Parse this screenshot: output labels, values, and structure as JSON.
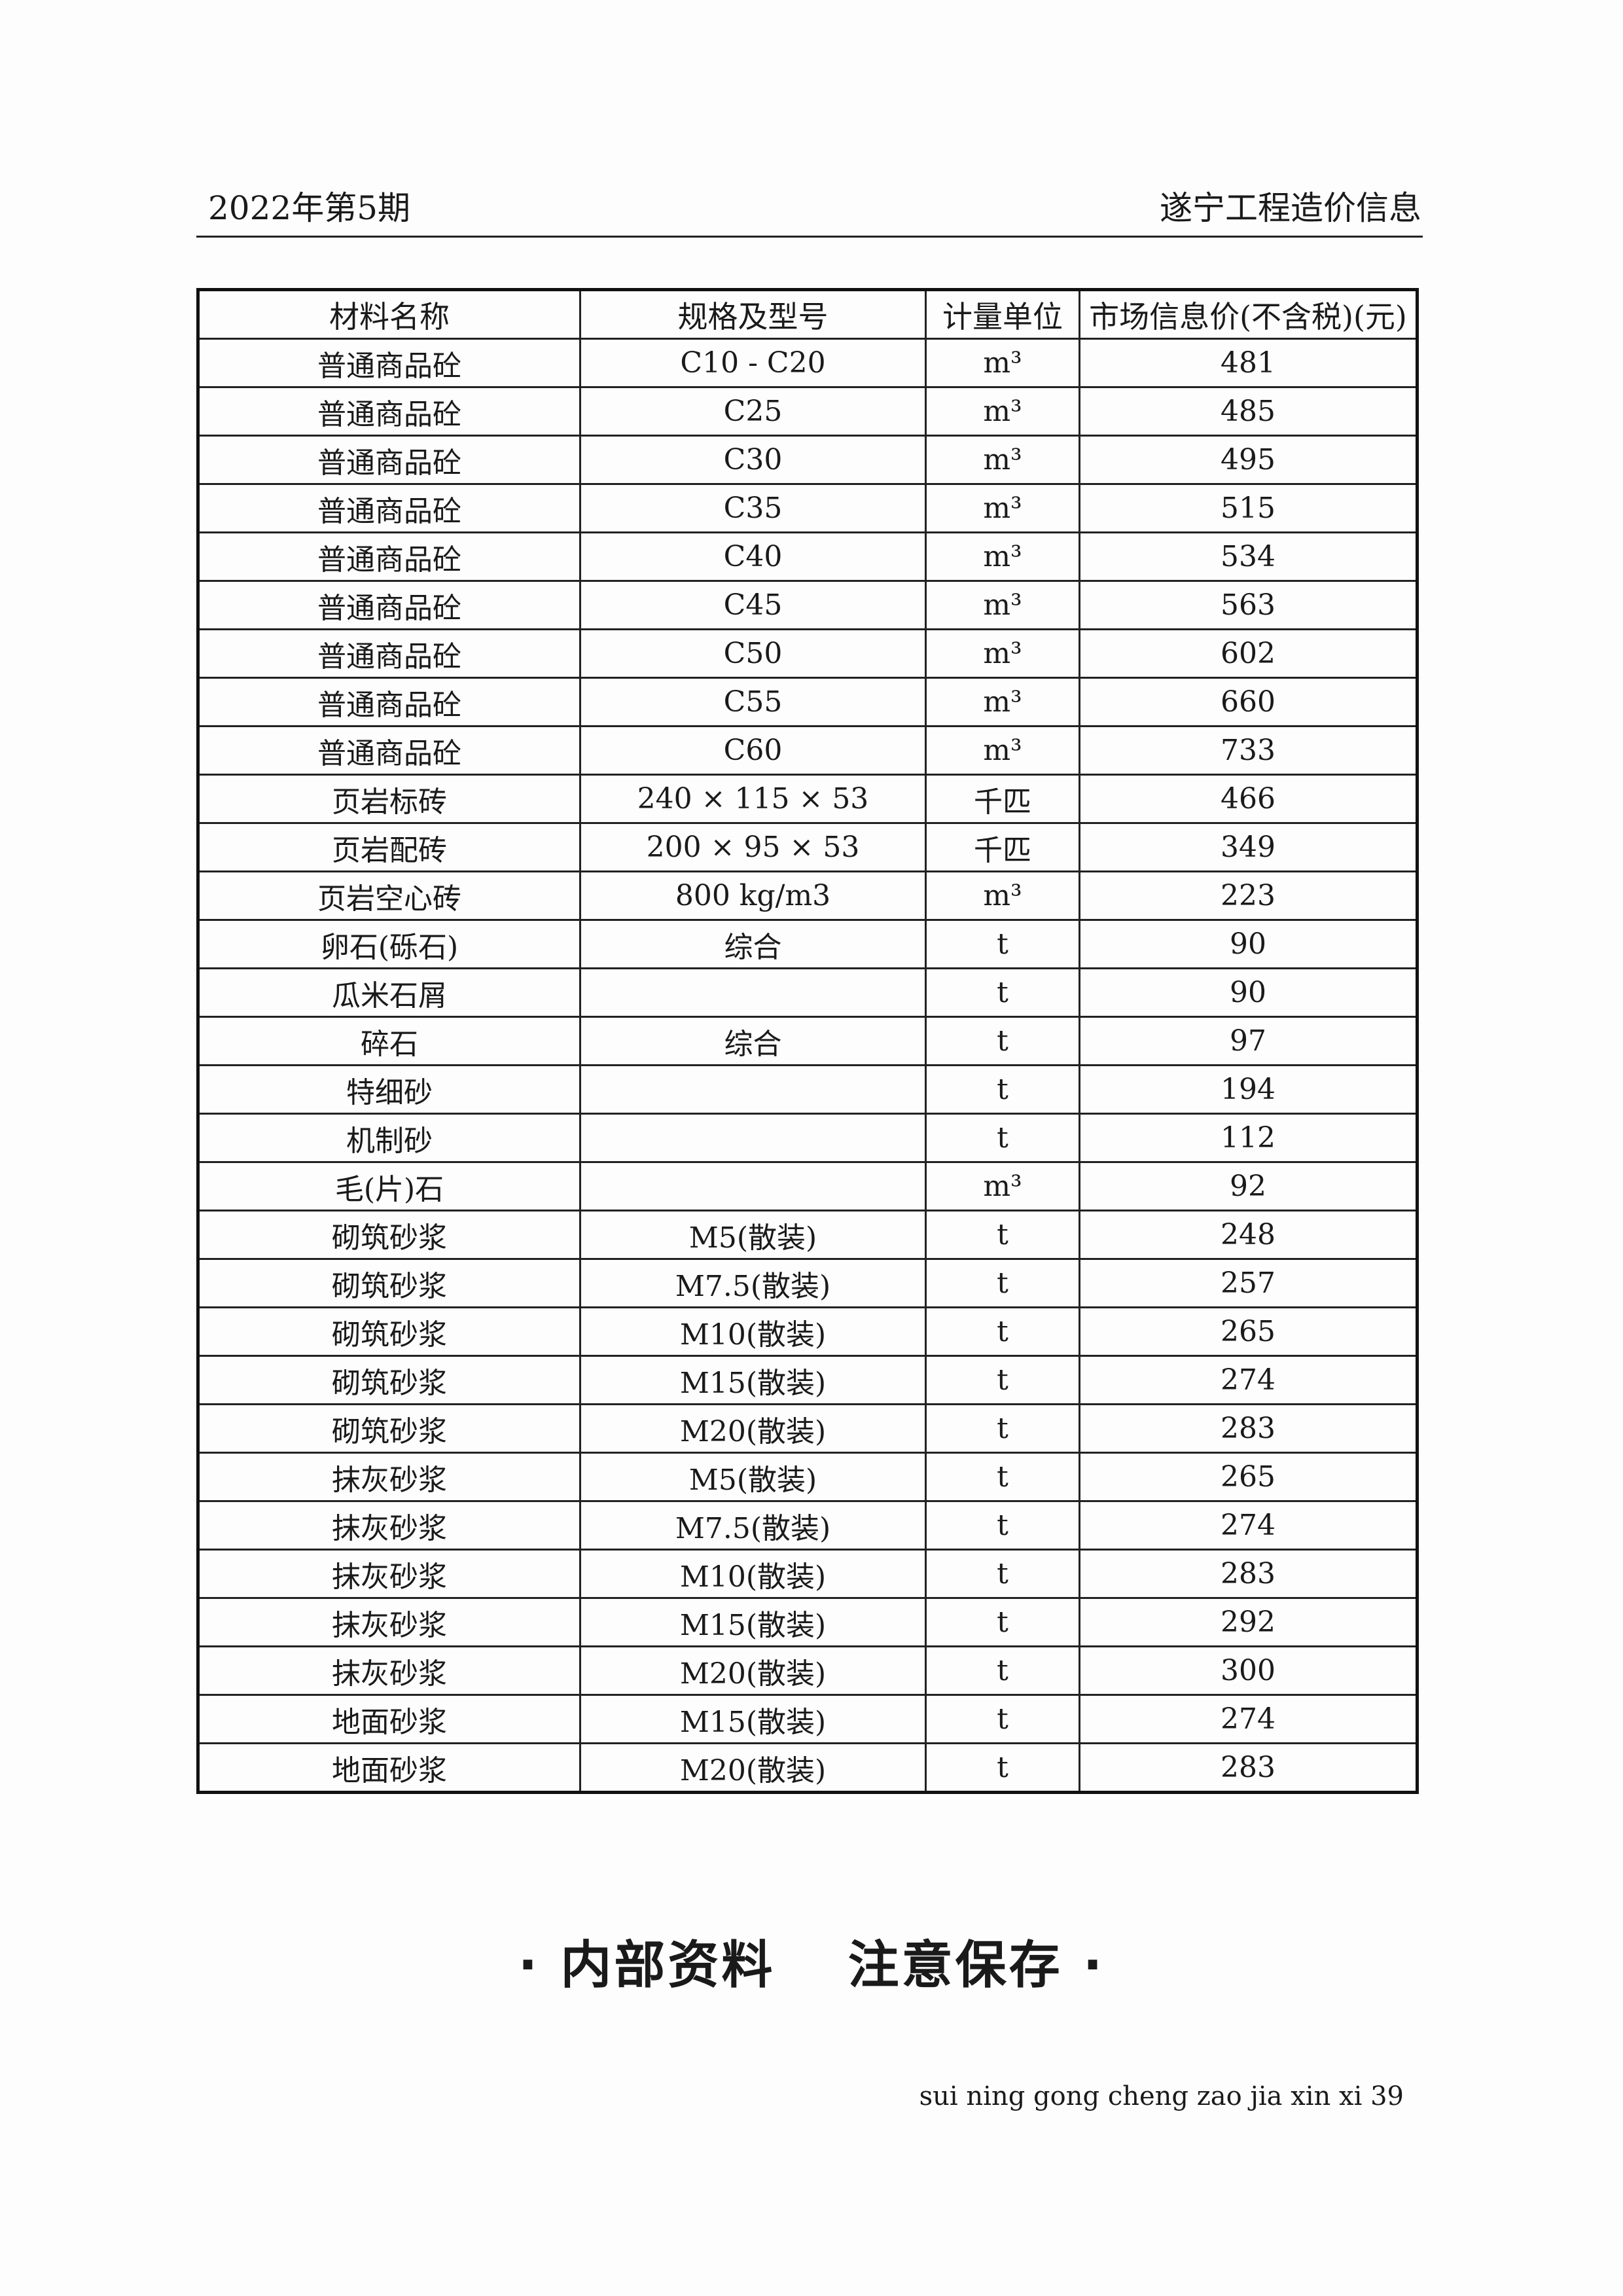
{
  "header": {
    "issue": "2022年第5期",
    "publication": "遂宁工程造价信息"
  },
  "table": {
    "columns": [
      "材料名称",
      "规格及型号",
      "计量单位",
      "市场信息价(不含税)(元)"
    ],
    "rows": [
      [
        "普通商品砼",
        "C10 - C20",
        "m³",
        "481"
      ],
      [
        "普通商品砼",
        "C25",
        "m³",
        "485"
      ],
      [
        "普通商品砼",
        "C30",
        "m³",
        "495"
      ],
      [
        "普通商品砼",
        "C35",
        "m³",
        "515"
      ],
      [
        "普通商品砼",
        "C40",
        "m³",
        "534"
      ],
      [
        "普通商品砼",
        "C45",
        "m³",
        "563"
      ],
      [
        "普通商品砼",
        "C50",
        "m³",
        "602"
      ],
      [
        "普通商品砼",
        "C55",
        "m³",
        "660"
      ],
      [
        "普通商品砼",
        "C60",
        "m³",
        "733"
      ],
      [
        "页岩标砖",
        "240 × 115 × 53",
        "千匹",
        "466"
      ],
      [
        "页岩配砖",
        "200 × 95 × 53",
        "千匹",
        "349"
      ],
      [
        "页岩空心砖",
        "800 kg/m3",
        "m³",
        "223"
      ],
      [
        "卵石(砾石)",
        "综合",
        "t",
        "90"
      ],
      [
        "瓜米石屑",
        "",
        "t",
        "90"
      ],
      [
        "碎石",
        "综合",
        "t",
        "97"
      ],
      [
        "特细砂",
        "",
        "t",
        "194"
      ],
      [
        "机制砂",
        "",
        "t",
        "112"
      ],
      [
        "毛(片)石",
        "",
        "m³",
        "92"
      ],
      [
        "砌筑砂浆",
        "M5(散装)",
        "t",
        "248"
      ],
      [
        "砌筑砂浆",
        "M7.5(散装)",
        "t",
        "257"
      ],
      [
        "砌筑砂浆",
        "M10(散装)",
        "t",
        "265"
      ],
      [
        "砌筑砂浆",
        "M15(散装)",
        "t",
        "274"
      ],
      [
        "砌筑砂浆",
        "M20(散装)",
        "t",
        "283"
      ],
      [
        "抹灰砂浆",
        "M5(散装)",
        "t",
        "265"
      ],
      [
        "抹灰砂浆",
        "M7.5(散装)",
        "t",
        "274"
      ],
      [
        "抹灰砂浆",
        "M10(散装)",
        "t",
        "283"
      ],
      [
        "抹灰砂浆",
        "M15(散装)",
        "t",
        "292"
      ],
      [
        "抹灰砂浆",
        "M20(散装)",
        "t",
        "300"
      ],
      [
        "地面砂浆",
        "M15(散装)",
        "t",
        "274"
      ],
      [
        "地面砂浆",
        "M20(散装)",
        "t",
        "283"
      ]
    ]
  },
  "notice": {
    "left": "· 内部资料",
    "right": "注意保存 ·"
  },
  "footer": {
    "text": "sui ning gong cheng zao jia xin xi 39"
  }
}
